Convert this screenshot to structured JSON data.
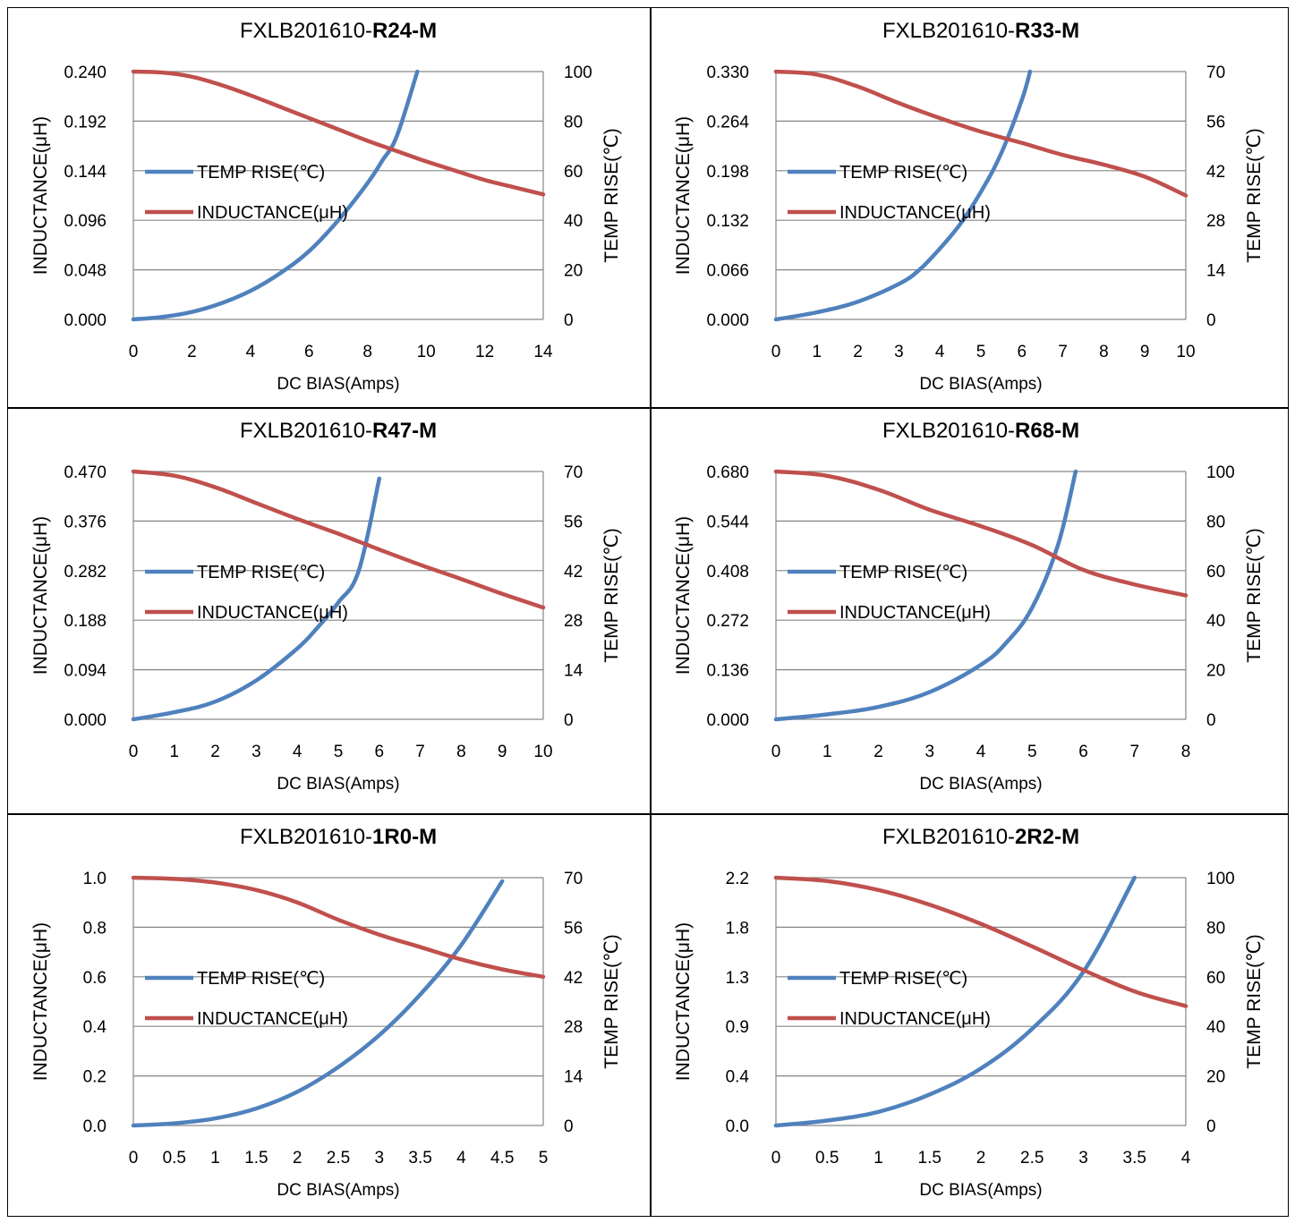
{
  "colors": {
    "temp": "#4F81BD",
    "inductance": "#C0504D",
    "grid": "#868686",
    "axis": "#868686"
  },
  "chart_data": [
    {
      "type": "line",
      "title_prefix": "FXLB201610-",
      "title_bold": "R24-M",
      "xlabel": "DC  BIAS(Amps)",
      "ylabel": "INDUCTANCE(μH)",
      "y2label": "TEMP RISE(℃)",
      "xlim": [
        0,
        14
      ],
      "xticks": [
        0,
        2,
        4,
        6,
        8,
        10,
        12,
        14
      ],
      "ylim": [
        0,
        0.24
      ],
      "yticks": [
        "0.000",
        "0.048",
        "0.096",
        "0.144",
        "0.192",
        "0.240"
      ],
      "y2lim": [
        0,
        100
      ],
      "y2ticks": [
        "0",
        "20",
        "40",
        "60",
        "80",
        "100"
      ],
      "legend": [
        "TEMP RISE(℃)",
        "INDUCTANCE(μH)"
      ],
      "series": [
        {
          "name": "TEMP RISE(℃)",
          "axis": "right",
          "x": [
            0,
            1,
            2,
            3,
            4,
            5,
            6,
            7,
            8,
            8.5,
            9,
            9.7
          ],
          "y": [
            0,
            1,
            3,
            6.5,
            11.5,
            18.5,
            27.5,
            40,
            55,
            64,
            74,
            100
          ]
        },
        {
          "name": "INDUCTANCE(μH)",
          "axis": "left",
          "x": [
            0,
            1,
            2,
            3,
            4,
            5,
            6,
            7,
            8,
            9,
            10,
            11,
            12,
            13,
            14
          ],
          "y": [
            0.24,
            0.239,
            0.235,
            0.227,
            0.217,
            0.206,
            0.195,
            0.184,
            0.173,
            0.163,
            0.153,
            0.144,
            0.135,
            0.128,
            0.121
          ]
        }
      ]
    },
    {
      "type": "line",
      "title_prefix": "FXLB201610-",
      "title_bold": "R33-M",
      "xlabel": "DC  BIAS(Amps)",
      "ylabel": "INDUCTANCE(μH)",
      "y2label": "TEMP RISE(℃)",
      "xlim": [
        0,
        10
      ],
      "xticks": [
        0,
        1,
        2,
        3,
        4,
        5,
        6,
        7,
        8,
        9,
        10
      ],
      "ylim": [
        0,
        0.33
      ],
      "yticks": [
        "0.000",
        "0.066",
        "0.132",
        "0.198",
        "0.264",
        "0.330"
      ],
      "y2lim": [
        0,
        70
      ],
      "y2ticks": [
        "0",
        "14",
        "28",
        "42",
        "56",
        "70"
      ],
      "legend": [
        "TEMP RISE(℃)",
        "INDUCTANCE(μH)"
      ],
      "series": [
        {
          "name": "TEMP RISE(℃)",
          "axis": "right",
          "x": [
            0,
            1,
            2,
            3,
            3.5,
            4,
            4.5,
            5,
            5.5,
            6,
            6.2
          ],
          "y": [
            0,
            2,
            5,
            10,
            14,
            20,
            27,
            36,
            47,
            62,
            70
          ]
        },
        {
          "name": "INDUCTANCE(μH)",
          "axis": "left",
          "x": [
            0,
            1,
            2,
            3,
            4,
            5,
            6,
            7,
            8,
            9,
            10
          ],
          "y": [
            0.33,
            0.326,
            0.31,
            0.288,
            0.268,
            0.25,
            0.235,
            0.219,
            0.206,
            0.19,
            0.165
          ]
        }
      ]
    },
    {
      "type": "line",
      "title_prefix": "FXLB201610-",
      "title_bold": "R47-M",
      "xlabel": "DC  BIAS(Amps)",
      "ylabel": "INDUCTANCE(μH)",
      "y2label": "TEMP RISE(℃)",
      "xlim": [
        0,
        10
      ],
      "xticks": [
        0,
        1,
        2,
        3,
        4,
        5,
        6,
        7,
        8,
        9,
        10
      ],
      "ylim": [
        0,
        0.47
      ],
      "yticks": [
        "0.000",
        "0.094",
        "0.188",
        "0.282",
        "0.376",
        "0.470"
      ],
      "y2lim": [
        0,
        70
      ],
      "y2ticks": [
        "0",
        "14",
        "28",
        "42",
        "56",
        "70"
      ],
      "legend": [
        "TEMP RISE(℃)",
        "INDUCTANCE(μH)"
      ],
      "series": [
        {
          "name": "TEMP RISE(℃)",
          "axis": "right",
          "x": [
            0,
            1,
            2,
            3,
            4,
            4.5,
            5,
            5.5,
            6
          ],
          "y": [
            0,
            2,
            5,
            11,
            20,
            26,
            33,
            42,
            68
          ]
        },
        {
          "name": "INDUCTANCE(μH)",
          "axis": "left",
          "x": [
            0,
            1,
            2,
            3,
            4,
            5,
            6,
            7,
            8,
            9,
            10
          ],
          "y": [
            0.47,
            0.462,
            0.44,
            0.41,
            0.38,
            0.352,
            0.322,
            0.293,
            0.266,
            0.238,
            0.212
          ]
        }
      ]
    },
    {
      "type": "line",
      "title_prefix": "FXLB201610-",
      "title_bold": "R68-M",
      "xlabel": "DC  BIAS(Amps)",
      "ylabel": "INDUCTANCE(μH)",
      "y2label": "TEMP RISE(℃)",
      "xlim": [
        0,
        8
      ],
      "xticks": [
        0,
        1,
        2,
        3,
        4,
        5,
        6,
        7,
        8
      ],
      "ylim": [
        0,
        0.68
      ],
      "yticks": [
        "0.000",
        "0.136",
        "0.272",
        "0.408",
        "0.544",
        "0.680"
      ],
      "y2lim": [
        0,
        100
      ],
      "y2ticks": [
        "0",
        "20",
        "40",
        "60",
        "80",
        "100"
      ],
      "legend": [
        "TEMP RISE(℃)",
        "INDUCTANCE(μH)"
      ],
      "series": [
        {
          "name": "TEMP RISE(℃)",
          "axis": "right",
          "x": [
            0,
            1,
            2,
            3,
            4,
            4.5,
            5,
            5.5,
            5.85
          ],
          "y": [
            0,
            2,
            5,
            11,
            22,
            31,
            45,
            70,
            100
          ]
        },
        {
          "name": "INDUCTANCE(μH)",
          "axis": "left",
          "x": [
            0,
            1,
            2,
            3,
            4,
            5,
            6,
            7,
            8
          ],
          "y": [
            0.68,
            0.668,
            0.63,
            0.575,
            0.53,
            0.478,
            0.41,
            0.37,
            0.34
          ]
        }
      ]
    },
    {
      "type": "line",
      "title_prefix": "FXLB201610-",
      "title_bold": "1R0-M",
      "xlabel": "DC  BIAS(Amps)",
      "ylabel": "INDUCTANCE(μH)",
      "y2label": "TEMP RISE(℃)",
      "xlim": [
        0,
        5
      ],
      "xticks": [
        "0",
        "0.5",
        "1",
        "1.5",
        "2",
        "2.5",
        "3",
        "3.5",
        "4",
        "4.5",
        "5"
      ],
      "ylim": [
        0,
        1.0
      ],
      "yticks": [
        "0.0",
        "0.2",
        "0.4",
        "0.6",
        "0.8",
        "1.0"
      ],
      "y2lim": [
        0,
        70
      ],
      "y2ticks": [
        "0",
        "14",
        "28",
        "42",
        "56",
        "70"
      ],
      "legend": [
        "TEMP RISE(℃)",
        "INDUCTANCE(μH)"
      ],
      "series": [
        {
          "name": "TEMP RISE(℃)",
          "axis": "right",
          "x": [
            0,
            0.5,
            1,
            1.5,
            2,
            2.5,
            3,
            3.5,
            4,
            4.5
          ],
          "y": [
            0,
            0.6,
            2,
            4.8,
            9.5,
            16.5,
            25.5,
            37,
            51,
            69
          ]
        },
        {
          "name": "INDUCTANCE(μH)",
          "axis": "left",
          "x": [
            0,
            0.5,
            1,
            1.5,
            2,
            2.5,
            3,
            3.5,
            4,
            4.5,
            5
          ],
          "y": [
            1.0,
            0.995,
            0.98,
            0.95,
            0.9,
            0.83,
            0.77,
            0.72,
            0.67,
            0.63,
            0.6
          ]
        }
      ]
    },
    {
      "type": "line",
      "title_prefix": "FXLB201610-",
      "title_bold": "2R2-M",
      "xlabel": "DC  BIAS(Amps)",
      "ylabel": "INDUCTANCE(μH)",
      "y2label": "TEMP RISE(℃)",
      "xlim": [
        0,
        4
      ],
      "xticks": [
        "0",
        "0.5",
        "1",
        "1.5",
        "2",
        "2.5",
        "3",
        "3.5",
        "4"
      ],
      "ylim": [
        0,
        2.2
      ],
      "yticks": [
        "0.0",
        "0.4",
        "0.9",
        "1.3",
        "1.8",
        "2.2"
      ],
      "y2lim": [
        0,
        100
      ],
      "y2ticks": [
        "0",
        "20",
        "40",
        "60",
        "80",
        "100"
      ],
      "legend": [
        "TEMP RISE(℃)",
        "INDUCTANCE(μH)"
      ],
      "series": [
        {
          "name": "TEMP RISE(℃)",
          "axis": "right",
          "x": [
            0,
            0.5,
            1,
            1.5,
            2,
            2.5,
            3,
            3.5
          ],
          "y": [
            0,
            2,
            5.5,
            12.5,
            23,
            39,
            62,
            100
          ]
        },
        {
          "name": "INDUCTANCE(μH)",
          "axis": "left",
          "x": [
            0,
            0.5,
            1,
            1.5,
            2,
            2.5,
            3,
            3.5,
            4
          ],
          "y": [
            2.2,
            2.17,
            2.09,
            1.96,
            1.79,
            1.59,
            1.38,
            1.19,
            1.06
          ]
        }
      ]
    }
  ]
}
